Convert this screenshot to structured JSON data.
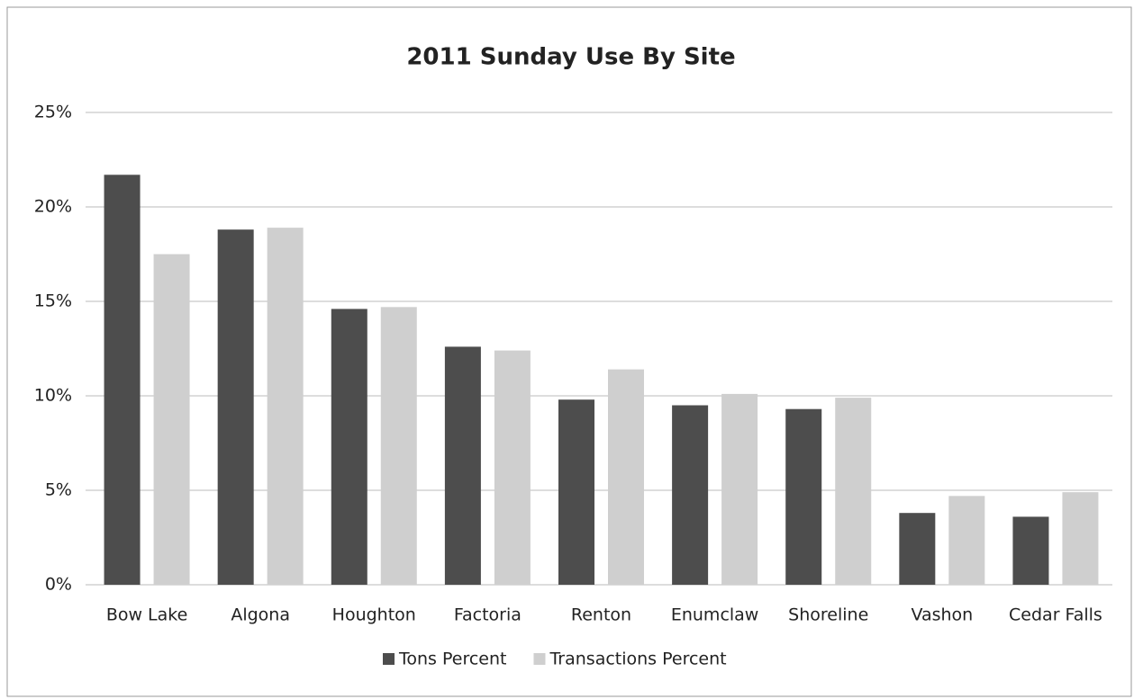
{
  "chart_data": {
    "type": "bar",
    "title": "2011 Sunday Use By Site",
    "categories": [
      "Bow Lake",
      "Algona",
      "Houghton",
      "Factoria",
      "Renton",
      "Enumclaw",
      "Shoreline",
      "Vashon",
      "Cedar Falls"
    ],
    "series": [
      {
        "name": "Tons Percent",
        "color": "#4d4d4d",
        "values": [
          21.7,
          18.8,
          14.6,
          12.6,
          9.8,
          9.5,
          9.3,
          3.8,
          3.6
        ]
      },
      {
        "name": "Transactions Percent",
        "color": "#cfcfcf",
        "values": [
          17.5,
          18.9,
          14.7,
          12.4,
          11.4,
          10.1,
          9.9,
          4.7,
          4.9
        ]
      }
    ],
    "ylim": [
      0,
      25
    ],
    "yticks": [
      {
        "value": 0,
        "label": "0%"
      },
      {
        "value": 5,
        "label": "5%"
      },
      {
        "value": 10,
        "label": "10%"
      },
      {
        "value": 15,
        "label": "15%"
      },
      {
        "value": 20,
        "label": "20%"
      },
      {
        "value": 25,
        "label": "25%"
      }
    ],
    "grid": true,
    "legend": "bottom"
  }
}
